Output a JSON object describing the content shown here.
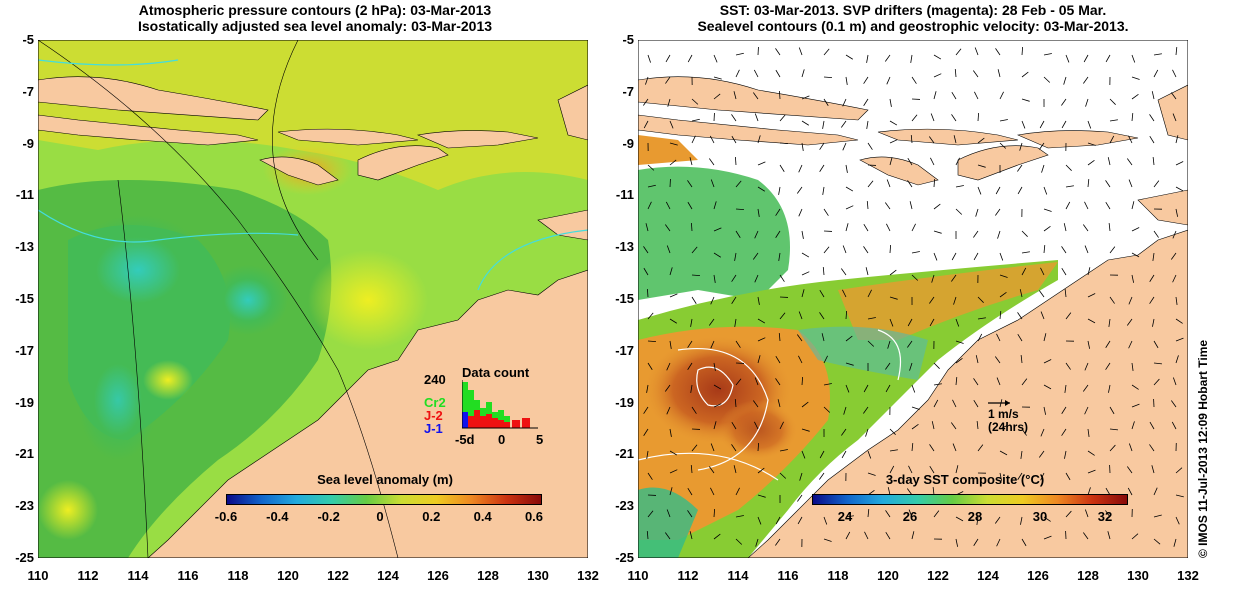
{
  "left_panel": {
    "title_line1": "Atmospheric pressure contours (2 hPa): 03-Mar-2013",
    "title_line2": "Isostatically adjusted sea level anomaly: 03-Mar-2013",
    "colorbar_label": "Sea level anomaly (m)",
    "colorbar_ticks": [
      "-0.6",
      "-0.4",
      "-0.2",
      "0",
      "0.2",
      "0.4",
      "0.6"
    ],
    "inset": {
      "title": "Data count",
      "ymax_label": "240",
      "legend": [
        {
          "label": "Cr2",
          "color": "#22dd22"
        },
        {
          "label": "J-2",
          "color": "#ee1111"
        },
        {
          "label": "J-1",
          "color": "#1111ee"
        }
      ],
      "x_ticks": [
        "-5d",
        "0",
        "5"
      ]
    }
  },
  "right_panel": {
    "title_line1": "SST: 03-Mar-2013. SVP drifters (magenta): 28 Feb - 05 Mar.",
    "title_line2": "Sealevel contours (0.1 m) and geostrophic velocity: 03-Mar-2013.",
    "colorbar_label": "3-day SST composite (°C)",
    "colorbar_ticks": [
      "24",
      "26",
      "28",
      "30",
      "32"
    ],
    "scale_label_1": "1 m/s",
    "scale_label_2": "(24hrs)"
  },
  "axes": {
    "y_ticks": [
      "-5",
      "-7",
      "-9",
      "-11",
      "-13",
      "-15",
      "-17",
      "-19",
      "-21",
      "-23",
      "-25"
    ],
    "x_ticks": [
      "110",
      "112",
      "114",
      "116",
      "118",
      "120",
      "122",
      "124",
      "126",
      "128",
      "130",
      "132"
    ]
  },
  "credit": "© IMOS 11-Jul-2013 12:09 Hobart Time",
  "colors": {
    "land": "#f8c9a0",
    "sla_green": "#66cc44",
    "sla_yellow": "#ccdd33",
    "sst_orange": "#e89a30",
    "sst_red": "#b04a20",
    "contour_cyan": "#44dddd"
  }
}
